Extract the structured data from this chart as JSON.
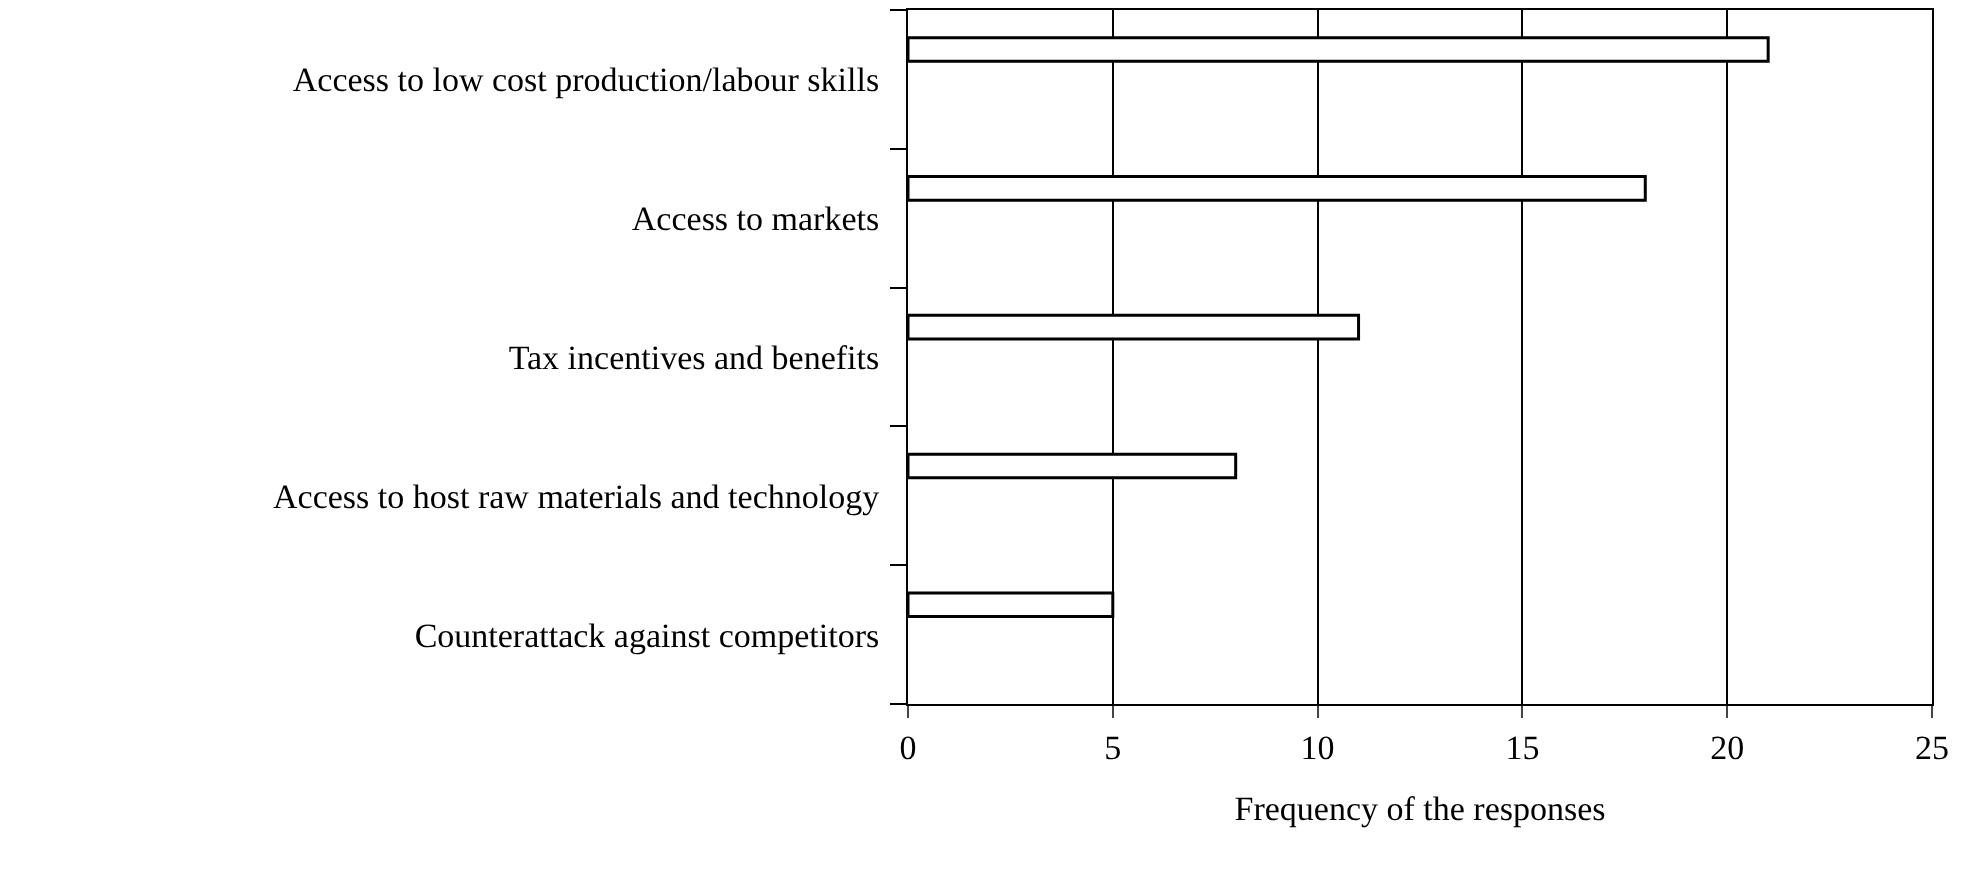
{
  "chart_data": {
    "type": "bar",
    "orientation": "horizontal",
    "categories": [
      "Access to low cost production/labour skills",
      "Access to markets",
      "Tax incentives and benefits",
      "Access to host raw materials and technology",
      "Counterattack against competitors"
    ],
    "values": [
      21,
      18,
      11,
      8,
      5
    ],
    "color": "#ffffff",
    "xlabel": "Frequency of the responses",
    "xlim": [
      0,
      25
    ],
    "xticks": [
      0,
      5,
      10,
      15,
      20,
      25
    ],
    "grid": "x"
  }
}
